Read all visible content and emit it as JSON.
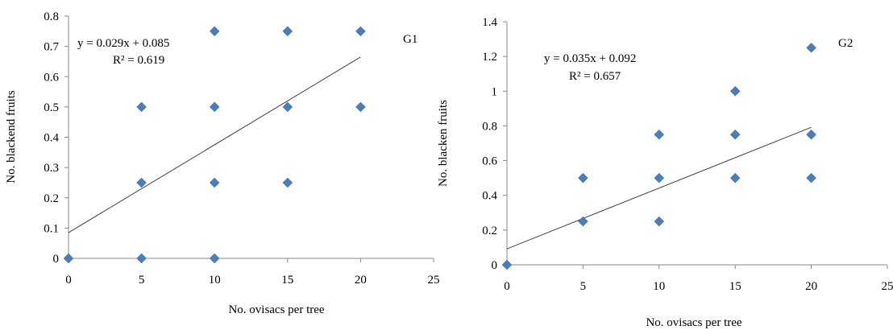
{
  "chart_data": [
    {
      "type": "scatter",
      "panel_label": "G1",
      "xlabel": "No. ovisacs per tree",
      "ylabel": "No. blackend fruits",
      "xlim": [
        0,
        25
      ],
      "ylim": [
        0,
        0.8
      ],
      "xticks": [
        "0",
        "5",
        "10",
        "15",
        "20",
        "25"
      ],
      "yticks": [
        "0",
        "0.1",
        "0.2",
        "0.3",
        "0.4",
        "0.5",
        "0.6",
        "0.7",
        "0.8"
      ],
      "grid": false,
      "points": [
        {
          "x": 0,
          "y": 0
        },
        {
          "x": 5,
          "y": 0
        },
        {
          "x": 10,
          "y": 0
        },
        {
          "x": 5,
          "y": 0.25
        },
        {
          "x": 10,
          "y": 0.25
        },
        {
          "x": 15,
          "y": 0.25
        },
        {
          "x": 5,
          "y": 0.5
        },
        {
          "x": 10,
          "y": 0.5
        },
        {
          "x": 15,
          "y": 0.5
        },
        {
          "x": 20,
          "y": 0.5
        },
        {
          "x": 10,
          "y": 0.75
        },
        {
          "x": 15,
          "y": 0.75
        },
        {
          "x": 20,
          "y": 0.75
        }
      ],
      "trendline": {
        "slope": 0.029,
        "intercept": 0.085,
        "x_range": [
          0,
          20
        ]
      },
      "equation": "y = 0.029x + 0.085",
      "r2": "R² = 0.619",
      "marker_color": "#4A7EBB",
      "line_color": "#404040"
    },
    {
      "type": "scatter",
      "panel_label": "G2",
      "xlabel": "No. ovisacs per tree",
      "ylabel": "No. blacken fruits",
      "xlim": [
        0,
        25
      ],
      "ylim": [
        0,
        1.4
      ],
      "xticks": [
        "0",
        "5",
        "10",
        "15",
        "20",
        "25"
      ],
      "yticks": [
        "0",
        "0.2",
        "0.4",
        "0.6",
        "0.8",
        "1",
        "1.2",
        "1.4"
      ],
      "grid": false,
      "points": [
        {
          "x": 0,
          "y": 0
        },
        {
          "x": 5,
          "y": 0.25
        },
        {
          "x": 5,
          "y": 0.5
        },
        {
          "x": 10,
          "y": 0.25
        },
        {
          "x": 10,
          "y": 0.5
        },
        {
          "x": 10,
          "y": 0.75
        },
        {
          "x": 15,
          "y": 0.5
        },
        {
          "x": 15,
          "y": 0.75
        },
        {
          "x": 15,
          "y": 1.0
        },
        {
          "x": 20,
          "y": 0.5
        },
        {
          "x": 20,
          "y": 0.75
        },
        {
          "x": 20,
          "y": 1.25
        }
      ],
      "trendline": {
        "slope": 0.035,
        "intercept": 0.092,
        "x_range": [
          0,
          20
        ]
      },
      "equation": "y = 0.035x + 0.092",
      "r2": "R² = 0.657",
      "marker_color": "#4A7EBB",
      "line_color": "#404040"
    }
  ]
}
